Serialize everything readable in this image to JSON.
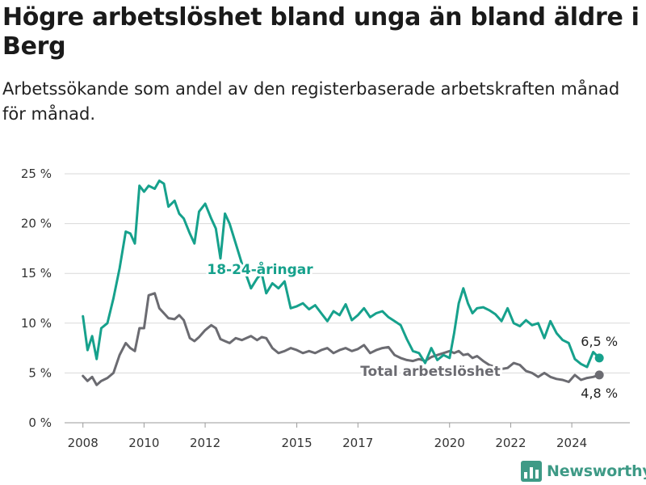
{
  "title": "Högre arbetslöshet bland unga än bland äldre i Berg",
  "subtitle": "Arbetssökande som andel av den registerbaserade arbetskraften månad för månad.",
  "brand": {
    "name": "Newsworthy",
    "color": "#3e9a86",
    "icon": "bar-chart-logo-icon"
  },
  "chart_data": {
    "type": "line",
    "xlabel": "",
    "ylabel": "",
    "ylim": [
      0,
      25
    ],
    "xlim": [
      2007.4,
      2025.9
    ],
    "y_ticks": [
      0,
      5,
      10,
      15,
      20,
      25
    ],
    "y_tick_labels": [
      "0 %",
      "5 %",
      "10 %",
      "15 %",
      "20 %",
      "25 %"
    ],
    "x_ticks": [
      2008,
      2010,
      2012,
      2015,
      2017,
      2020,
      2022,
      2024
    ],
    "x_tick_labels": [
      "2008",
      "2010",
      "2012",
      "2015",
      "2017",
      "2020",
      "2022",
      "2024"
    ],
    "grid": true,
    "series": [
      {
        "name": "18-24-åringar",
        "color": "#16a18c",
        "end_label": "6,5 %",
        "x": [
          2008.0,
          2008.15,
          2008.3,
          2008.45,
          2008.6,
          2008.8,
          2009.0,
          2009.2,
          2009.4,
          2009.55,
          2009.7,
          2009.85,
          2010.0,
          2010.15,
          2010.35,
          2010.5,
          2010.65,
          2010.8,
          2011.0,
          2011.15,
          2011.3,
          2011.5,
          2011.65,
          2011.8,
          2012.0,
          2012.2,
          2012.35,
          2012.5,
          2012.65,
          2012.8,
          2013.0,
          2013.2,
          2013.35,
          2013.5,
          2013.7,
          2013.85,
          2014.0,
          2014.2,
          2014.4,
          2014.6,
          2014.8,
          2015.0,
          2015.2,
          2015.4,
          2015.6,
          2015.8,
          2016.0,
          2016.2,
          2016.4,
          2016.6,
          2016.8,
          2017.0,
          2017.2,
          2017.4,
          2017.6,
          2017.8,
          2018.0,
          2018.2,
          2018.4,
          2018.6,
          2018.8,
          2019.0,
          2019.2,
          2019.4,
          2019.6,
          2019.8,
          2020.0,
          2020.15,
          2020.3,
          2020.45,
          2020.6,
          2020.75,
          2020.9,
          2021.1,
          2021.3,
          2021.5,
          2021.7,
          2021.9,
          2022.1,
          2022.3,
          2022.5,
          2022.7,
          2022.9,
          2023.1,
          2023.3,
          2023.5,
          2023.7,
          2023.9,
          2024.1,
          2024.3,
          2024.5,
          2024.7,
          2024.9
        ],
        "values": [
          10.7,
          7.3,
          8.7,
          6.4,
          9.5,
          10.0,
          12.5,
          15.5,
          19.2,
          19.0,
          18.0,
          23.8,
          23.2,
          23.8,
          23.5,
          24.3,
          24.0,
          21.7,
          22.3,
          21.0,
          20.5,
          19.0,
          18.0,
          21.2,
          22.0,
          20.5,
          19.5,
          16.5,
          21.0,
          20.0,
          18.0,
          16.0,
          14.8,
          13.5,
          14.5,
          15.0,
          13.0,
          14.0,
          13.5,
          14.2,
          11.5,
          11.7,
          12.0,
          11.4,
          11.8,
          11.0,
          10.2,
          11.2,
          10.8,
          11.9,
          10.3,
          10.8,
          11.5,
          10.6,
          11.0,
          11.2,
          10.6,
          10.2,
          9.8,
          8.4,
          7.2,
          7.0,
          6.0,
          7.5,
          6.3,
          6.8,
          6.5,
          9.0,
          12.0,
          13.5,
          12.0,
          11.0,
          11.5,
          11.6,
          11.3,
          10.9,
          10.2,
          11.5,
          10.0,
          9.7,
          10.3,
          9.8,
          10.0,
          8.5,
          10.2,
          9.0,
          8.3,
          8.0,
          6.4,
          5.9,
          5.6,
          7.1,
          6.5
        ]
      },
      {
        "name": "Total arbetslöshet",
        "color": "#6b6b71",
        "end_label": "4,8 %",
        "x": [
          2008.0,
          2008.15,
          2008.3,
          2008.45,
          2008.6,
          2008.8,
          2009.0,
          2009.2,
          2009.4,
          2009.55,
          2009.7,
          2009.85,
          2010.0,
          2010.15,
          2010.35,
          2010.5,
          2010.65,
          2010.8,
          2011.0,
          2011.15,
          2011.3,
          2011.5,
          2011.65,
          2011.8,
          2012.0,
          2012.2,
          2012.35,
          2012.5,
          2012.65,
          2012.8,
          2013.0,
          2013.2,
          2013.35,
          2013.5,
          2013.7,
          2013.85,
          2014.0,
          2014.2,
          2014.4,
          2014.6,
          2014.8,
          2015.0,
          2015.2,
          2015.4,
          2015.6,
          2015.8,
          2016.0,
          2016.2,
          2016.4,
          2016.6,
          2016.8,
          2017.0,
          2017.2,
          2017.4,
          2017.6,
          2017.8,
          2018.0,
          2018.2,
          2018.4,
          2018.6,
          2018.8,
          2019.0,
          2019.2,
          2019.4,
          2019.6,
          2019.8,
          2020.0,
          2020.15,
          2020.3,
          2020.45,
          2020.6,
          2020.75,
          2020.9,
          2021.1,
          2021.3,
          2021.5,
          2021.7,
          2021.9,
          2022.1,
          2022.3,
          2022.5,
          2022.7,
          2022.9,
          2023.1,
          2023.3,
          2023.5,
          2023.7,
          2023.9,
          2024.1,
          2024.3,
          2024.5,
          2024.7,
          2024.9
        ],
        "values": [
          4.7,
          4.2,
          4.6,
          3.8,
          4.2,
          4.5,
          5.0,
          6.8,
          8.0,
          7.5,
          7.2,
          9.5,
          9.5,
          12.8,
          13.0,
          11.5,
          11.0,
          10.5,
          10.4,
          10.8,
          10.3,
          8.5,
          8.2,
          8.6,
          9.3,
          9.8,
          9.5,
          8.4,
          8.2,
          8.0,
          8.5,
          8.3,
          8.5,
          8.7,
          8.3,
          8.6,
          8.5,
          7.5,
          7.0,
          7.2,
          7.5,
          7.3,
          7.0,
          7.2,
          7.0,
          7.3,
          7.5,
          7.0,
          7.3,
          7.5,
          7.2,
          7.4,
          7.8,
          7.0,
          7.3,
          7.5,
          7.6,
          6.8,
          6.5,
          6.3,
          6.2,
          6.4,
          6.2,
          6.6,
          6.8,
          7.0,
          7.2,
          7.0,
          7.2,
          6.8,
          6.9,
          6.5,
          6.7,
          6.2,
          5.8,
          5.6,
          5.4,
          5.5,
          6.0,
          5.8,
          5.2,
          5.0,
          4.6,
          5.0,
          4.6,
          4.4,
          4.3,
          4.1,
          4.8,
          4.3,
          4.5,
          4.6,
          4.8
        ]
      }
    ]
  }
}
